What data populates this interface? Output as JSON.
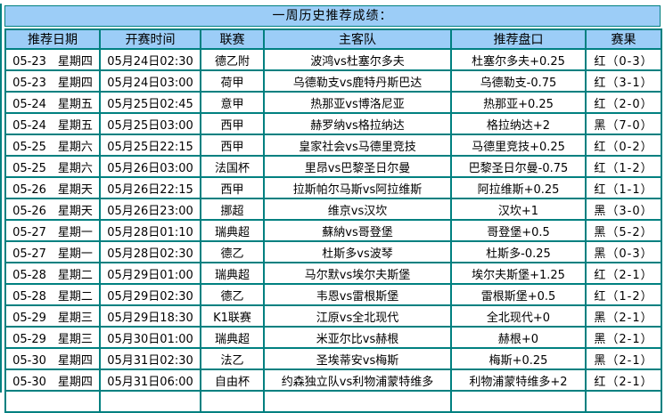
{
  "title": "一周历史推荐成绩：",
  "colors": {
    "border_teal": "#008080",
    "header_bg": "#9CCDF7",
    "result_red": "#FF0000",
    "result_black": "#000000"
  },
  "table": {
    "headers": [
      "推荐日期",
      "开赛时间",
      "联赛",
      "主客队",
      "推荐盘口",
      "赛果"
    ],
    "rows": [
      {
        "date": "05-23　星期四",
        "time": "05月24日02:30",
        "league": "德乙附",
        "match": "波鸿vs杜塞尔多夫",
        "handicap": "杜塞尔多夫+0.25",
        "result": "红（0-3）",
        "result_color": "red"
      },
      {
        "date": "05-23　星期四",
        "time": "05月24日03:00",
        "league": "荷甲",
        "match": "乌德勒支vs鹿特丹斯巴达",
        "handicap": "乌德勒支-0.75",
        "result": "红（3-1）",
        "result_color": "red"
      },
      {
        "date": "05-24　星期五",
        "time": "05月25日02:45",
        "league": "意甲",
        "match": "热那亚vs博洛尼亚",
        "handicap": "热那亚+0.25",
        "result": "红（2-0）",
        "result_color": "red"
      },
      {
        "date": "05-24　星期五",
        "time": "05月25日03:00",
        "league": "西甲",
        "match": "赫罗纳vs格拉纳达",
        "handicap": "格拉纳达+2",
        "result": "黑（7-0）",
        "result_color": "black"
      },
      {
        "date": "05-25　星期六",
        "time": "05月25日22:15",
        "league": "西甲",
        "match": "皇家社会vs马德里竞技",
        "handicap": "马德里竞技+0.25",
        "result": "红（0-2）",
        "result_color": "red"
      },
      {
        "date": "05-25　星期六",
        "time": "05月26日03:00",
        "league": "法国杯",
        "match": "里昂vs巴黎圣日尔曼",
        "handicap": "巴黎圣日尔曼-0.75",
        "result": "红（1-2）",
        "result_color": "red"
      },
      {
        "date": "05-26　星期天",
        "time": "05月26日22:15",
        "league": "西甲",
        "match": "拉斯帕尔马斯vs阿拉维斯",
        "handicap": "阿拉维斯+0.25",
        "result": "红（1-1）",
        "result_color": "red"
      },
      {
        "date": "05-26　星期天",
        "time": "05月26日23:00",
        "league": "挪超",
        "match": "维京vs汉坎",
        "handicap": "汉坎+1",
        "result": "黑（3-0）",
        "result_color": "black"
      },
      {
        "date": "05-27　星期一",
        "time": "05月28日01:10",
        "league": "瑞典超",
        "match": "蘇納vs哥登堡",
        "handicap": "哥登堡+0.5",
        "result": "黑（5-2）",
        "result_color": "black"
      },
      {
        "date": "05-27　星期一",
        "time": "05月28日02:30",
        "league": "德乙",
        "match": "杜斯多vs波琴",
        "handicap": "杜斯多-0.25",
        "result": "黑（0-3）",
        "result_color": "black"
      },
      {
        "date": "05-28　星期二",
        "time": "05月29日01:00",
        "league": "瑞典超",
        "match": "马尔默vs埃尔夫斯堡",
        "handicap": "埃尔夫斯堡+1.25",
        "result": "红（2-1）",
        "result_color": "red"
      },
      {
        "date": "05-28　星期二",
        "time": "05月29日02:30",
        "league": "德乙",
        "match": "韦恩vs雷根斯堡",
        "handicap": "雷根斯堡+0.5",
        "result": "红（1-2）",
        "result_color": "red"
      },
      {
        "date": "05-29　星期三",
        "time": "05月29日18:30",
        "league": "K1联赛",
        "match": "江原vs全北现代",
        "handicap": "全北现代+0",
        "result": "黑（2-1）",
        "result_color": "black"
      },
      {
        "date": "05-29　星期三",
        "time": "05月30日01:00",
        "league": "瑞典超",
        "match": "米亚尔比vs赫根",
        "handicap": "赫根+0",
        "result": "黑（2-1）",
        "result_color": "black"
      },
      {
        "date": "05-30　星期四",
        "time": "05月31日02:30",
        "league": "法乙",
        "match": "圣埃蒂安vs梅斯",
        "handicap": "梅斯+0.25",
        "result": "黑（2-1）",
        "result_color": "black"
      },
      {
        "date": "05-30　星期四",
        "time": "05月31日06:00",
        "league": "自由杯",
        "match": "约森独立队vs利物浦蒙特维多",
        "handicap": "利物浦蒙特维多+2",
        "result": "红（2-1）",
        "result_color": "red"
      }
    ]
  }
}
